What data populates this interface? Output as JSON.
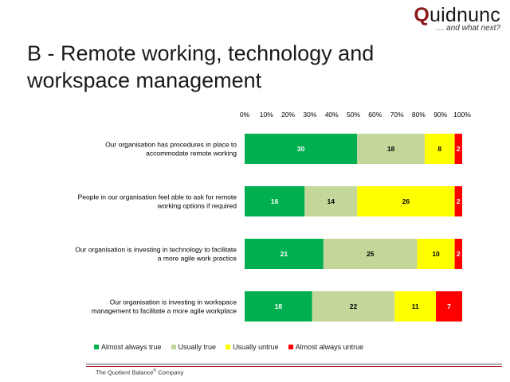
{
  "brand": {
    "initial": "Q",
    "rest": "uidnunc",
    "tagline": "… and what next?"
  },
  "title": "B - Remote working, technology and workspace management",
  "colors": {
    "almost_always_true": "#00b050",
    "usually_true": "#c4d79b",
    "usually_untrue": "#ffff00",
    "almost_always_untrue": "#ff0000"
  },
  "chart_data": {
    "type": "bar",
    "orientation": "horizontal",
    "stacked": "percent",
    "categories": [
      [
        "Our organisation has procedures in place to",
        "accommodate remote working"
      ],
      [
        "People in our organisation feel able to ask for remote",
        "working options if required"
      ],
      [
        "Our organisation is investing in technology to facilitate",
        "a more agile work practice"
      ],
      [
        "Our organisation is investing in workspace",
        "management to facilitate a more agile workplace"
      ]
    ],
    "series": [
      {
        "name": "Almost always true",
        "color": "#00b050",
        "values": [
          30,
          16,
          21,
          18
        ]
      },
      {
        "name": "Usually true",
        "color": "#c4d79b",
        "values": [
          18,
          14,
          25,
          22
        ]
      },
      {
        "name": "Usually untrue",
        "color": "#ffff00",
        "values": [
          8,
          26,
          10,
          11
        ]
      },
      {
        "name": "Almost always untrue",
        "color": "#ff0000",
        "values": [
          2,
          2,
          2,
          7
        ]
      }
    ],
    "xticks": [
      "0%",
      "10%",
      "20%",
      "30%",
      "40%",
      "50%",
      "60%",
      "70%",
      "80%",
      "90%",
      "100%"
    ],
    "xlim": [
      0,
      100
    ],
    "legend": "bottom",
    "grid": false
  },
  "footer": {
    "company": "The Quotient Balance",
    "reg": "®",
    "suffix": " Company"
  }
}
